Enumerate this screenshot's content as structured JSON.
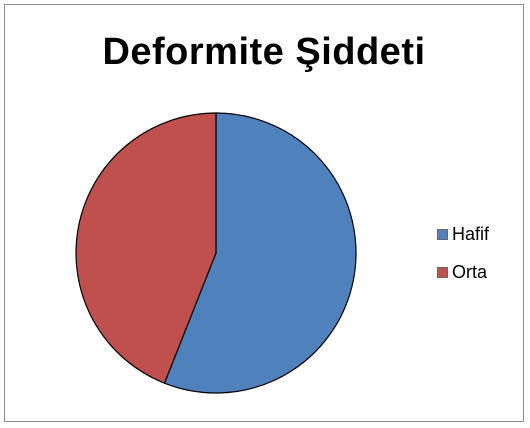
{
  "chart_data": {
    "type": "pie",
    "title": "Deformite Şiddeti",
    "categories": [
      "Hafif",
      "Orta"
    ],
    "values": [
      56,
      44
    ],
    "colors": [
      "#4f81bd",
      "#c0504d"
    ],
    "start_angle_deg": 0,
    "direction": "clockwise",
    "legend_position": "right"
  }
}
